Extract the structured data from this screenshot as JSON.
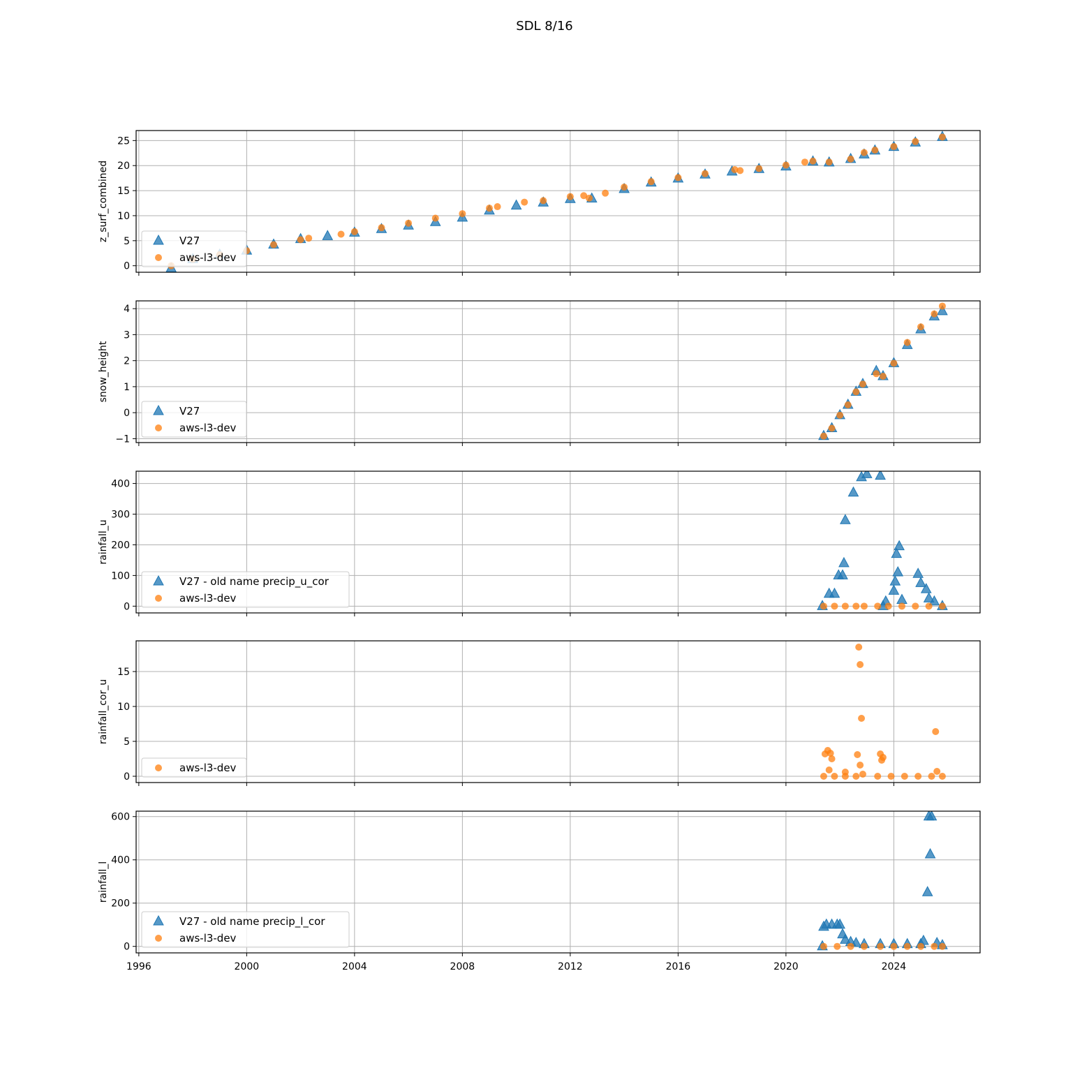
{
  "figure": {
    "title": "SDL 8/16"
  },
  "chart_data": [
    {
      "type": "scatter",
      "ylabel": "z_surf_combined",
      "xlim": [
        1995.9,
        2027.2
      ],
      "ylim": [
        -1.3,
        27
      ],
      "yticks": [
        0,
        5,
        10,
        15,
        20,
        25
      ],
      "grid": true,
      "legend_position": "lower-left",
      "series": [
        {
          "name": "V27",
          "marker": "triangle",
          "color": "#1f77b4",
          "x": [
            1997.2,
            1998,
            1999,
            2000,
            2001,
            2002,
            2003,
            2004,
            2005,
            2006,
            2007,
            2008,
            2009,
            2010,
            2011,
            2012,
            2012.8,
            2014,
            2015,
            2016,
            2017,
            2018,
            2019,
            2020,
            2021,
            2021.6,
            2022.4,
            2022.9,
            2023.3,
            2024,
            2024.8,
            2025.8
          ],
          "y": [
            -0.5,
            1.3,
            2.2,
            3.0,
            4.2,
            5.3,
            5.9,
            6.6,
            7.3,
            8.0,
            8.7,
            9.6,
            11.0,
            12.0,
            12.6,
            13.3,
            13.4,
            15.3,
            16.6,
            17.4,
            18.2,
            18.8,
            19.3,
            19.8,
            20.8,
            20.6,
            21.3,
            22.2,
            23.0,
            23.7,
            24.6,
            25.7
          ]
        },
        {
          "name": "aws-l3-dev",
          "marker": "circle",
          "color": "#ff7f0e",
          "x": [
            1997.2,
            1998,
            1999,
            2000,
            2001,
            2002,
            2002.3,
            2003.5,
            2004,
            2005,
            2006,
            2007,
            2008,
            2009,
            2009.3,
            2010.3,
            2011,
            2012,
            2012.5,
            2012.7,
            2013.3,
            2014,
            2015,
            2016,
            2017,
            2018.1,
            2018.3,
            2019,
            2020,
            2020.7,
            2021,
            2021.6,
            2022.4,
            2022.9,
            2023.3,
            2024,
            2024.8,
            2025.8
          ],
          "y": [
            0.0,
            1.3,
            2.2,
            3.0,
            4.2,
            5.2,
            5.5,
            6.3,
            6.8,
            7.6,
            8.5,
            9.5,
            10.4,
            11.5,
            11.8,
            12.7,
            13.0,
            13.8,
            14.0,
            13.5,
            14.5,
            15.7,
            16.8,
            17.6,
            18.4,
            19.2,
            19.0,
            19.4,
            20.1,
            20.7,
            20.9,
            20.7,
            21.3,
            22.6,
            23.1,
            23.8,
            24.8,
            25.7
          ]
        }
      ]
    },
    {
      "type": "scatter",
      "ylabel": "snow_height",
      "xlim": [
        1995.9,
        2027.2
      ],
      "ylim": [
        -1.15,
        4.3
      ],
      "yticks": [
        -1,
        0,
        1,
        2,
        3,
        4
      ],
      "grid": true,
      "legend_position": "lower-left",
      "series": [
        {
          "name": "V27",
          "marker": "triangle",
          "color": "#1f77b4",
          "x": [
            2021.4,
            2021.7,
            2022.0,
            2022.3,
            2022.6,
            2022.85,
            2023.35,
            2023.6,
            2024.0,
            2024.5,
            2025.0,
            2025.5,
            2025.8
          ],
          "y": [
            -0.9,
            -0.6,
            -0.1,
            0.3,
            0.8,
            1.1,
            1.6,
            1.4,
            1.9,
            2.6,
            3.2,
            3.7,
            3.9
          ]
        },
        {
          "name": "aws-l3-dev",
          "marker": "circle",
          "color": "#ff7f0e",
          "x": [
            2021.4,
            2021.7,
            2022.0,
            2022.3,
            2022.6,
            2022.85,
            2023.35,
            2023.6,
            2024.0,
            2024.5,
            2025.0,
            2025.5,
            2025.8
          ],
          "y": [
            -0.9,
            -0.6,
            -0.1,
            0.3,
            0.8,
            1.1,
            1.5,
            1.4,
            1.9,
            2.7,
            3.3,
            3.8,
            4.1
          ]
        }
      ]
    },
    {
      "type": "scatter",
      "ylabel": "rainfall_u",
      "xlim": [
        1995.9,
        2027.2
      ],
      "ylim": [
        -22,
        440
      ],
      "yticks": [
        0,
        100,
        200,
        300,
        400
      ],
      "grid": true,
      "legend_position": "lower-left",
      "series": [
        {
          "name": "V27 - old name precip_u_cor",
          "marker": "triangle",
          "color": "#1f77b4",
          "x": [
            2021.35,
            2021.6,
            2021.8,
            2021.95,
            2022.1,
            2022.15,
            2022.2,
            2022.5,
            2022.8,
            2023.0,
            2023.5,
            2023.7,
            2023.6,
            2024.0,
            2024.05,
            2024.1,
            2024.15,
            2024.2,
            2024.3,
            2024.9,
            2025.0,
            2025.2,
            2025.3,
            2025.5,
            2025.8
          ],
          "y": [
            0,
            40,
            40,
            100,
            100,
            140,
            280,
            370,
            420,
            430,
            425,
            15,
            0,
            50,
            80,
            170,
            110,
            195,
            20,
            105,
            75,
            55,
            25,
            15,
            0
          ]
        },
        {
          "name": "aws-l3-dev",
          "marker": "circle",
          "color": "#ff7f0e",
          "x": [
            2021.4,
            2021.8,
            2022.2,
            2022.6,
            2022.9,
            2023.4,
            2023.8,
            2024.3,
            2024.8,
            2025.3,
            2025.8
          ],
          "y": [
            0,
            0,
            0,
            0,
            0,
            0,
            0,
            0,
            0,
            0,
            0
          ]
        }
      ]
    },
    {
      "type": "scatter",
      "ylabel": "rainfall_cor_u",
      "xlim": [
        1995.9,
        2027.2
      ],
      "ylim": [
        -0.9,
        19.4
      ],
      "yticks": [
        0,
        5,
        10,
        15
      ],
      "grid": true,
      "legend_position": "lower-left",
      "series": [
        {
          "name": "aws-l3-dev",
          "marker": "circle",
          "color": "#ff7f0e",
          "x": [
            2021.45,
            2021.55,
            2021.6,
            2021.65,
            2021.7,
            2022.2,
            2022.65,
            2022.7,
            2022.75,
            2022.75,
            2022.8,
            2022.85,
            2023.5,
            2023.55,
            2023.6,
            2025.55,
            2025.6,
            2021.4,
            2021.8,
            2022.2,
            2022.6,
            2023.4,
            2023.9,
            2024.4,
            2024.9,
            2025.4,
            2025.8
          ],
          "y": [
            3.2,
            3.7,
            0.9,
            3.3,
            2.5,
            0.6,
            3.1,
            18.5,
            16.0,
            1.6,
            8.3,
            0.3,
            3.2,
            2.3,
            2.7,
            6.4,
            0.7,
            0,
            0,
            0,
            0,
            0,
            0,
            0,
            0,
            0,
            0
          ]
        }
      ]
    },
    {
      "type": "scatter",
      "ylabel": "rainfall_l",
      "xlim": [
        1995.9,
        2027.2
      ],
      "ylim": [
        -30,
        625
      ],
      "yticks": [
        0,
        200,
        400,
        600
      ],
      "xticks": [
        1996,
        2000,
        2004,
        2008,
        2012,
        2016,
        2020,
        2024
      ],
      "grid": true,
      "legend_position": "lower-left",
      "series": [
        {
          "name": "V27 - old name precip_l_cor",
          "marker": "triangle",
          "color": "#1f77b4",
          "x": [
            2021.35,
            2021.4,
            2021.5,
            2021.7,
            2021.9,
            2022.0,
            2022.1,
            2022.2,
            2022.4,
            2022.6,
            2022.9,
            2023.5,
            2024.0,
            2024.5,
            2025.0,
            2025.1,
            2025.25,
            2025.3,
            2025.35,
            2025.4,
            2025.6,
            2025.8
          ],
          "y": [
            0,
            90,
            100,
            100,
            100,
            100,
            55,
            30,
            20,
            15,
            10,
            10,
            10,
            10,
            10,
            25,
            250,
            600,
            425,
            600,
            15,
            5
          ]
        },
        {
          "name": "aws-l3-dev",
          "marker": "circle",
          "color": "#ff7f0e",
          "x": [
            2021.4,
            2021.9,
            2022.4,
            2022.9,
            2023.5,
            2024.0,
            2024.5,
            2025.0,
            2025.5,
            2025.8
          ],
          "y": [
            0,
            0,
            0,
            0,
            0,
            0,
            0,
            0,
            0,
            0
          ]
        }
      ]
    }
  ]
}
